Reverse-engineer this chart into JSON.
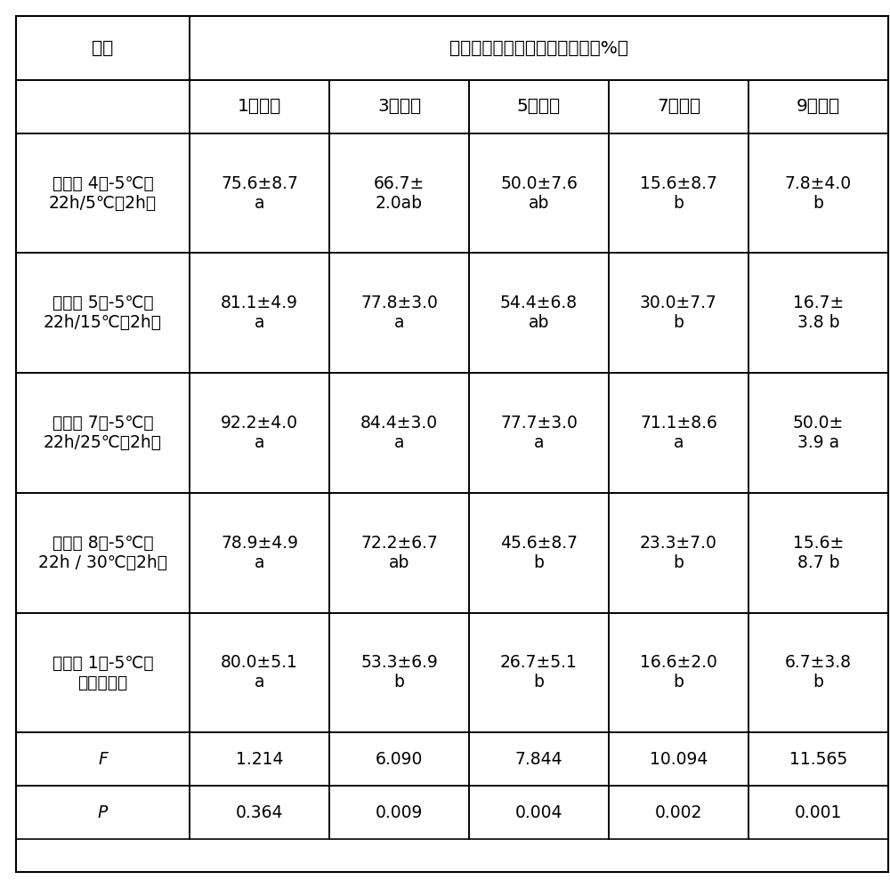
{
  "title_row": "低温暴露不同时间后的存活率（%）",
  "col0_header": "项目",
  "col_headers": [
    "1（天）",
    "3（天）",
    "5（天）",
    "7（天）",
    "9（天）"
  ],
  "row_labels": [
    "实施例 4（-5℃、\n22h/5℃、2h）",
    "实施例 5（-5℃、\n22h/15℃、2h）",
    "实施例 7（-5℃、\n22h/25℃、2h）",
    "实施例 8（-5℃、\n22h / 30℃、2h）",
    "对比例 1（-5℃、\n恒温暴露）"
  ],
  "data_cells": [
    [
      "75.6±8.7\na",
      "66.7±\n2.0ab",
      "50.0±7.6\nab",
      "15.6±8.7\nb",
      "7.8±4.0\nb"
    ],
    [
      "81.1±4.9\na",
      "77.8±3.0\na",
      "54.4±6.8\nab",
      "30.0±7.7\nb",
      "16.7±\n3.8 b"
    ],
    [
      "92.2±4.0\na",
      "84.4±3.0\na",
      "77.7±3.0\na",
      "71.1±8.6\na",
      "50.0±\n3.9 a"
    ],
    [
      "78.9±4.9\na",
      "72.2±6.7\nab",
      "45.6±8.7\nb",
      "23.3±7.0\nb",
      "15.6±\n8.7 b"
    ],
    [
      "80.0±5.1\na",
      "53.3±6.9\nb",
      "26.7±5.1\nb",
      "16.6±2.0\nb",
      "6.7±3.8\nb"
    ]
  ],
  "f_values": [
    "1.214",
    "6.090",
    "7.844",
    "10.094",
    "11.565"
  ],
  "p_values": [
    "0.364",
    "0.009",
    "0.004",
    "0.002",
    "0.001"
  ],
  "bg_color": "#ffffff",
  "line_color": "#000000",
  "text_color": "#000000",
  "font_size": 13.5,
  "header_font_size": 14.5
}
